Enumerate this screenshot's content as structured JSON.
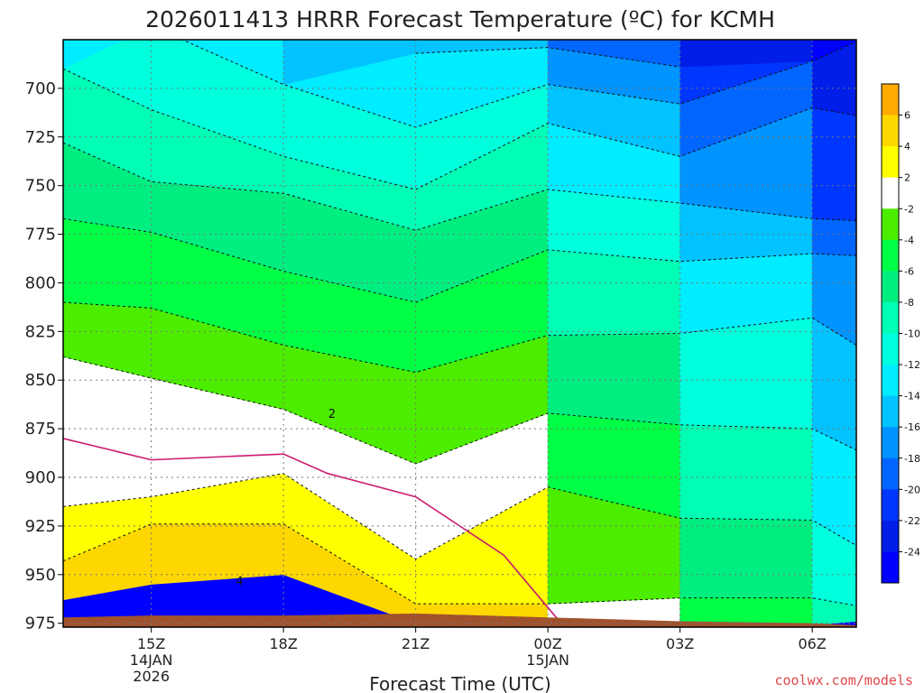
{
  "chart_data": {
    "type": "heatmap",
    "title": "2026011413 HRRR Forecast Temperature (ºC) for KCMH",
    "xlabel": "Forecast Time (UTC)",
    "ylabel": "",
    "credit": "coolwx.com/models",
    "y_scale": "pressure (hPa), increasing downward",
    "ylim": [
      977,
      675
    ],
    "y_ticks": [
      "700",
      "725",
      "750",
      "775",
      "800",
      "825",
      "850",
      "875",
      "900",
      "925",
      "950",
      "975"
    ],
    "x_ticks": [
      {
        "time": "15Z",
        "lines": [
          "15Z",
          "14JAN",
          "2026"
        ]
      },
      {
        "time": "18Z",
        "lines": [
          "18Z"
        ]
      },
      {
        "time": "21Z",
        "lines": [
          "21Z"
        ]
      },
      {
        "time": "00Z",
        "lines": [
          "00Z",
          "15JAN"
        ]
      },
      {
        "time": "03Z",
        "lines": [
          "03Z"
        ]
      },
      {
        "time": "06Z",
        "lines": [
          "06Z"
        ]
      }
    ],
    "x_range_hours_from_15Z": [
      -2,
      16
    ],
    "grid": true,
    "contour_labels": [
      {
        "text": "2",
        "hour": 4.1,
        "pressure": 867
      },
      {
        "text": "4",
        "hour": 2.0,
        "pressure": 953
      }
    ],
    "colorbar": {
      "levels": [
        "6",
        "4",
        "2",
        "-2",
        "-4",
        "-6",
        "-8",
        "-10",
        "-12",
        "-14",
        "-16",
        "-18",
        "-20",
        "-22",
        "-24"
      ],
      "colors": [
        "#ffaa00",
        "#ffd700",
        "#ffff00",
        "#ffffff",
        "#4ded00",
        "#00ff45",
        "#00ee80",
        "#00ffb4",
        "#00ffdd",
        "#00ecff",
        "#00c3ff",
        "#0094ff",
        "#0066ff",
        "#0037ff",
        "#001ee8",
        "#0000ff"
      ]
    },
    "ground_color": "#a0522d",
    "freezing_line_color": "#cc1a6e",
    "temperature_bands_by_hour": [
      {
        "hour": -2,
        "bands": [
          [
            963,
            "#ffd700"
          ],
          [
            943,
            "#ffff00"
          ],
          [
            915,
            "#ffffff"
          ],
          [
            838,
            "#4ded00"
          ],
          [
            810,
            "#00ff45"
          ],
          [
            767,
            "#00ee80"
          ],
          [
            728,
            "#00ffb4"
          ],
          [
            690,
            "#00ffdd"
          ]
        ]
      },
      {
        "hour": 0,
        "bands": [
          [
            955,
            "#ffd700"
          ],
          [
            924,
            "#ffff00"
          ],
          [
            910,
            "#ffffff"
          ],
          [
            849,
            "#4ded00"
          ],
          [
            813,
            "#00ff45"
          ],
          [
            774,
            "#00ee80"
          ],
          [
            748,
            "#00ffb4"
          ],
          [
            711,
            "#00ffdd"
          ],
          [
            668,
            "#00ecff"
          ]
        ]
      },
      {
        "hour": 3,
        "bands": [
          [
            950,
            "#ffd700"
          ],
          [
            924,
            "#ffff00"
          ],
          [
            898,
            "#ffffff"
          ],
          [
            865,
            "#4ded00"
          ],
          [
            832,
            "#00ff45"
          ],
          [
            794,
            "#00ee80"
          ],
          [
            754,
            "#00ffb4"
          ],
          [
            735,
            "#00ffdd"
          ],
          [
            698,
            "#00ecff"
          ]
        ]
      },
      {
        "hour": 6,
        "bands": [
          [
            975,
            "#ffd700"
          ],
          [
            965,
            "#ffff00"
          ],
          [
            942,
            "#ffffff"
          ],
          [
            893,
            "#4ded00"
          ],
          [
            846,
            "#00ff45"
          ],
          [
            810,
            "#00ee80"
          ],
          [
            773,
            "#00ffb4"
          ],
          [
            752,
            "#00ffdd"
          ],
          [
            720,
            "#00ecff"
          ],
          [
            682,
            "#00c3ff"
          ]
        ]
      },
      {
        "hour": 9,
        "bands": [
          [
            977,
            "#ffffff"
          ],
          [
            965,
            "#4ded00"
          ],
          [
            905,
            "#00ff45"
          ],
          [
            867,
            "#00ee80"
          ],
          [
            827,
            "#00ffb4"
          ],
          [
            783,
            "#00ffdd"
          ],
          [
            752,
            "#00ecff"
          ],
          [
            718,
            "#00c3ff"
          ],
          [
            698,
            "#0094ff"
          ],
          [
            679,
            "#0066ff"
          ]
        ]
      },
      {
        "hour": 12,
        "bands": [
          [
            976,
            "#00ff45"
          ],
          [
            962,
            "#00ee80"
          ],
          [
            921,
            "#00ffb4"
          ],
          [
            873,
            "#00ffdd"
          ],
          [
            826,
            "#00ecff"
          ],
          [
            789,
            "#00c3ff"
          ],
          [
            759,
            "#0094ff"
          ],
          [
            735,
            "#0066ff"
          ],
          [
            708,
            "#0037ff"
          ],
          [
            689,
            "#001ee8"
          ]
        ]
      },
      {
        "hour": 15,
        "bands": [
          [
            976,
            "#00ffb4"
          ],
          [
            962,
            "#00ffdd"
          ],
          [
            922,
            "#00ecff"
          ],
          [
            875,
            "#00c3ff"
          ],
          [
            818,
            "#0094ff"
          ],
          [
            785,
            "#0066ff"
          ],
          [
            767,
            "#0037ff"
          ],
          [
            710,
            "#001ee8"
          ],
          [
            686,
            "#0000ff"
          ]
        ]
      },
      {
        "hour": 16,
        "bands": [
          [
            974,
            "#00ffb4"
          ],
          [
            966,
            "#00ffdd"
          ],
          [
            935,
            "#00ecff"
          ],
          [
            886,
            "#00c3ff"
          ],
          [
            832,
            "#0094ff"
          ],
          [
            786,
            "#0066ff"
          ],
          [
            768,
            "#0037ff"
          ],
          [
            714,
            "#001ee8"
          ],
          [
            676,
            "#0000ff"
          ]
        ]
      }
    ]
  }
}
